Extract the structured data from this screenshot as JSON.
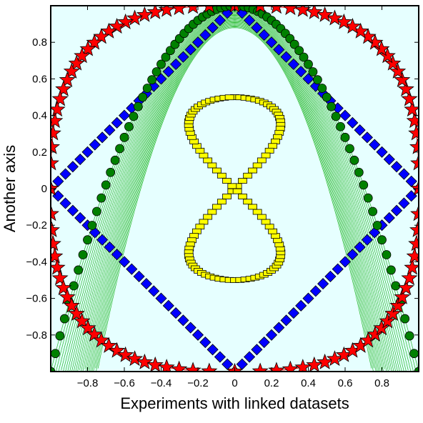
{
  "chart_data": {
    "type": "scatter",
    "title": "",
    "xlabel": "Experiments with linked datasets",
    "ylabel": "Another axis",
    "xlim": [
      -1,
      1
    ],
    "ylim": [
      -1,
      1
    ],
    "grid": false,
    "legend": "none",
    "background_color": "#e6ffff",
    "xticks": [
      -0.8,
      -0.6,
      -0.4,
      -0.2,
      0,
      0.2,
      0.4,
      0.6,
      0.8
    ],
    "xtick_labels": [
      "−0.8",
      "−0.6",
      "−0.4",
      "−0.2",
      "0",
      "0.2",
      "0.4",
      "0.6",
      "0.8"
    ],
    "yticks": [
      0.8,
      0.6,
      0.4,
      0.2,
      0,
      -0.2,
      -0.4,
      -0.6,
      -0.8
    ],
    "ytick_labels": [
      "0.8",
      "0.6",
      "0.4",
      "0.2",
      "0",
      "−0.2",
      "−0.4",
      "−0.6",
      "−0.8"
    ],
    "series": [
      {
        "marker": "diamond",
        "color": "#0000ff",
        "curve": "square rotated 45 degrees with vertices (±1, 0) and (0, ±1)",
        "x": [
          -1,
          -0.9,
          -0.8,
          -0.7,
          -0.6,
          -0.5,
          -0.4,
          -0.3,
          -0.2,
          -0.1,
          0,
          0.1,
          0.2,
          0.3,
          0.4,
          0.5,
          0.6,
          0.7,
          0.8,
          0.9,
          1
        ],
        "y": [
          0,
          0.1,
          0.2,
          0.3,
          0.4,
          0.5,
          0.6,
          0.7,
          0.8,
          0.9,
          1,
          0.9,
          0.8,
          0.7,
          0.6,
          0.5,
          0.4,
          0.3,
          0.2,
          0.1,
          0
        ]
      },
      {
        "marker": "star",
        "color": "#ff0000",
        "line_color": "#ff0000",
        "curve": "superellipse |x|^2.8 + |y|^2.8 = 1",
        "x": [
          1,
          0.99,
          0.96,
          0.9,
          0.8,
          0.6,
          0.3,
          0,
          -0.3,
          -0.6,
          -0.8,
          -0.9,
          -0.96,
          -0.99,
          -1
        ],
        "y": [
          0,
          0.35,
          0.55,
          0.7,
          0.82,
          0.93,
          0.99,
          1,
          0.99,
          0.93,
          0.82,
          0.7,
          0.55,
          0.35,
          0
        ]
      },
      {
        "marker": "circle",
        "color": "#008000",
        "line_color": "#00aa00",
        "curve": "parabola y = 1 − 2x² with a band of thin green lines near the apex",
        "x": [
          -1,
          -0.8,
          -0.6,
          -0.4,
          -0.2,
          0,
          0.2,
          0.4,
          0.6,
          0.8,
          1
        ],
        "y": [
          -1,
          -0.28,
          0.28,
          0.68,
          0.92,
          1,
          0.92,
          0.68,
          0.28,
          -0.28,
          -1
        ]
      },
      {
        "marker": "square",
        "color": "#ffff00",
        "curve": "figure-eight x = 0.25·sin(2t), y = 0.5·cos(t)",
        "x": [
          0,
          0.25,
          0,
          -0.25,
          0,
          0.25,
          0,
          -0.25,
          0
        ],
        "y": [
          0.5,
          0.35,
          0,
          -0.35,
          -0.5,
          -0.35,
          0,
          0.35,
          0.5
        ]
      }
    ]
  }
}
